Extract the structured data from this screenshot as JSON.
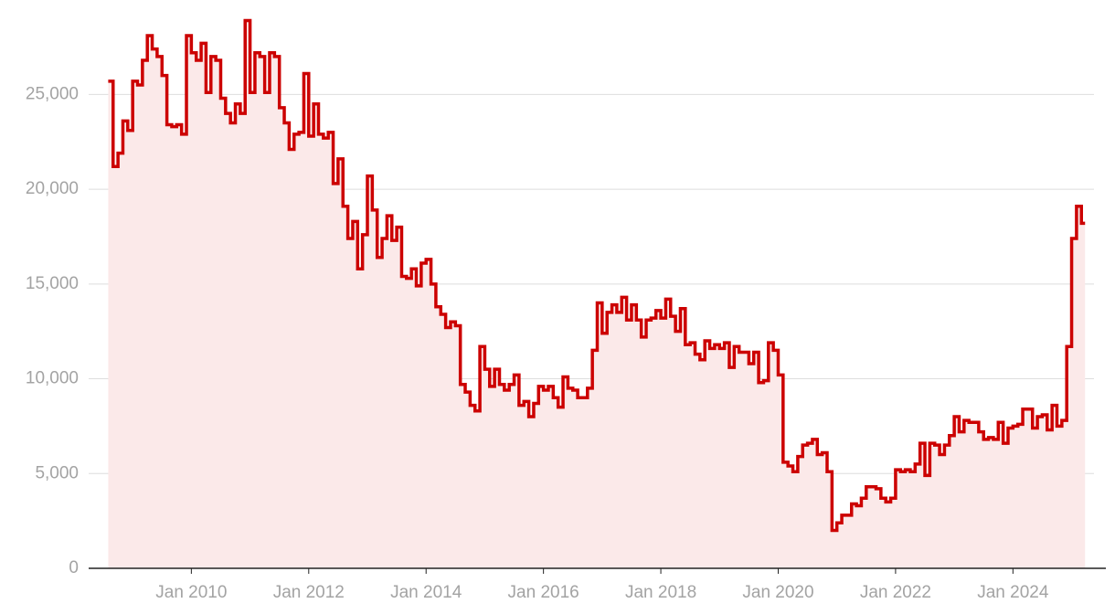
{
  "chart_data": {
    "type": "step-area",
    "color": "#cc0000",
    "fill": "#fbe9e9",
    "x": [
      "2008-08",
      "2008-09",
      "2008-10",
      "2008-11",
      "2008-12",
      "2009-01",
      "2009-02",
      "2009-03",
      "2009-04",
      "2009-05",
      "2009-06",
      "2009-07",
      "2009-08",
      "2009-09",
      "2009-10",
      "2009-11",
      "2009-12",
      "2010-01",
      "2010-02",
      "2010-03",
      "2010-04",
      "2010-05",
      "2010-06",
      "2010-07",
      "2010-08",
      "2010-09",
      "2010-10",
      "2010-11",
      "2010-12",
      "2011-01",
      "2011-02",
      "2011-03",
      "2011-04",
      "2011-05",
      "2011-06",
      "2011-07",
      "2011-08",
      "2011-09",
      "2011-10",
      "2011-11",
      "2011-12",
      "2012-01",
      "2012-02",
      "2012-03",
      "2012-04",
      "2012-05",
      "2012-06",
      "2012-07",
      "2012-08",
      "2012-09",
      "2012-10",
      "2012-11",
      "2012-12",
      "2013-01",
      "2013-02",
      "2013-03",
      "2013-04",
      "2013-05",
      "2013-06",
      "2013-07",
      "2013-08",
      "2013-09",
      "2013-10",
      "2013-11",
      "2013-12",
      "2014-01",
      "2014-02",
      "2014-03",
      "2014-04",
      "2014-05",
      "2014-06",
      "2014-07",
      "2014-08",
      "2014-09",
      "2014-10",
      "2014-11",
      "2014-12",
      "2015-01",
      "2015-02",
      "2015-03",
      "2015-04",
      "2015-05",
      "2015-06",
      "2015-07",
      "2015-08",
      "2015-09",
      "2015-10",
      "2015-11",
      "2015-12",
      "2016-01",
      "2016-02",
      "2016-03",
      "2016-04",
      "2016-05",
      "2016-06",
      "2016-07",
      "2016-08",
      "2016-09",
      "2016-10",
      "2016-11",
      "2016-12",
      "2017-01",
      "2017-02",
      "2017-03",
      "2017-04",
      "2017-05",
      "2017-06",
      "2017-07",
      "2017-08",
      "2017-09",
      "2017-10",
      "2017-11",
      "2017-12",
      "2018-01",
      "2018-02",
      "2018-03",
      "2018-04",
      "2018-05",
      "2018-06",
      "2018-07",
      "2018-08",
      "2018-09",
      "2018-10",
      "2018-11",
      "2018-12",
      "2019-01",
      "2019-02",
      "2019-03",
      "2019-04",
      "2019-05",
      "2019-06",
      "2019-07",
      "2019-08",
      "2019-09",
      "2019-10",
      "2019-11",
      "2019-12",
      "2020-01",
      "2020-02",
      "2020-03",
      "2020-04",
      "2020-05",
      "2020-06",
      "2020-07",
      "2020-08",
      "2020-09",
      "2020-10",
      "2020-11",
      "2020-12",
      "2021-01",
      "2021-02",
      "2021-03",
      "2021-04",
      "2021-05",
      "2021-06",
      "2021-07",
      "2021-08",
      "2021-09",
      "2021-10",
      "2021-11",
      "2021-12",
      "2022-01",
      "2022-02",
      "2022-03",
      "2022-04",
      "2022-05",
      "2022-06",
      "2022-07",
      "2022-08",
      "2022-09",
      "2022-10",
      "2022-11",
      "2022-12",
      "2023-01",
      "2023-02",
      "2023-03",
      "2023-04",
      "2023-05",
      "2023-06",
      "2023-07",
      "2023-08",
      "2023-09",
      "2023-10",
      "2023-11",
      "2023-12",
      "2024-01",
      "2024-02",
      "2024-03",
      "2024-04",
      "2024-05",
      "2024-06",
      "2024-07",
      "2024-08",
      "2024-09",
      "2024-10",
      "2024-11",
      "2024-12",
      "2025-01",
      "2025-02",
      "2025-03"
    ],
    "values": [
      25700,
      21200,
      21900,
      23600,
      23100,
      25700,
      25500,
      26800,
      28100,
      27400,
      27000,
      26000,
      23400,
      23300,
      23400,
      22900,
      28100,
      27200,
      26800,
      27700,
      25100,
      27000,
      26800,
      24800,
      24000,
      23500,
      24500,
      24000,
      28900,
      25100,
      27200,
      27000,
      25100,
      27200,
      27000,
      24300,
      23500,
      22100,
      22900,
      23000,
      26100,
      22800,
      24500,
      22900,
      22700,
      23000,
      20300,
      21600,
      19100,
      17400,
      18300,
      15800,
      17600,
      20700,
      18900,
      16400,
      17400,
      18600,
      17300,
      18000,
      15400,
      15300,
      15800,
      14900,
      16100,
      16300,
      15000,
      13800,
      13400,
      12700,
      13000,
      12800,
      9700,
      9300,
      8600,
      8300,
      11700,
      10500,
      9600,
      10500,
      9700,
      9400,
      9700,
      10200,
      8600,
      8800,
      8000,
      8700,
      9600,
      9400,
      9600,
      9000,
      8500,
      10100,
      9500,
      9400,
      9000,
      9000,
      9500,
      11500,
      14000,
      12400,
      13500,
      13900,
      13500,
      14300,
      13100,
      13900,
      13100,
      12200,
      13100,
      13200,
      13600,
      13200,
      14200,
      13300,
      12500,
      13700,
      11800,
      11900,
      11300,
      11000,
      12000,
      11600,
      11800,
      11600,
      11900,
      10600,
      11700,
      11400,
      11400,
      10800,
      11400,
      9800,
      9900,
      11900,
      11500,
      10200,
      5600,
      5400,
      5100,
      5900,
      6500,
      6600,
      6800,
      6000,
      6100,
      5100,
      2000,
      2400,
      2800,
      2800,
      3400,
      3300,
      3700,
      4300,
      4300,
      4200,
      3700,
      3500,
      3700,
      5200,
      5100,
      5200,
      5100,
      5500,
      6600,
      4900,
      6600,
      6500,
      6000,
      6500,
      7000,
      8000,
      7200,
      7800,
      7700,
      7700,
      7200,
      6800,
      6900,
      6800,
      7700,
      6600,
      7400,
      7500,
      7600,
      8400,
      8400,
      7400,
      8000,
      8100,
      7300,
      8600,
      7500,
      7800,
      11700,
      17400,
      19100,
      18200
    ],
    "xlim": [
      "2008-04",
      "2025-08"
    ],
    "xticks": [
      {
        "value": "2010-01",
        "label": "Jan 2010"
      },
      {
        "value": "2012-01",
        "label": "Jan 2012"
      },
      {
        "value": "2014-01",
        "label": "Jan 2014"
      },
      {
        "value": "2016-01",
        "label": "Jan 2016"
      },
      {
        "value": "2018-01",
        "label": "Jan 2018"
      },
      {
        "value": "2020-01",
        "label": "Jan 2020"
      },
      {
        "value": "2022-01",
        "label": "Jan 2022"
      },
      {
        "value": "2024-01",
        "label": "Jan 2024"
      }
    ],
    "ylim": [
      0,
      29500
    ],
    "yticks": [
      0,
      {
        "value": 5000,
        "label": "5,000"
      },
      {
        "value": 10000,
        "label": "10,000"
      },
      {
        "value": 15000,
        "label": "15,000"
      },
      {
        "value": 20000,
        "label": "20,000"
      },
      {
        "value": 25000,
        "label": "25,000"
      }
    ],
    "grid": true
  }
}
